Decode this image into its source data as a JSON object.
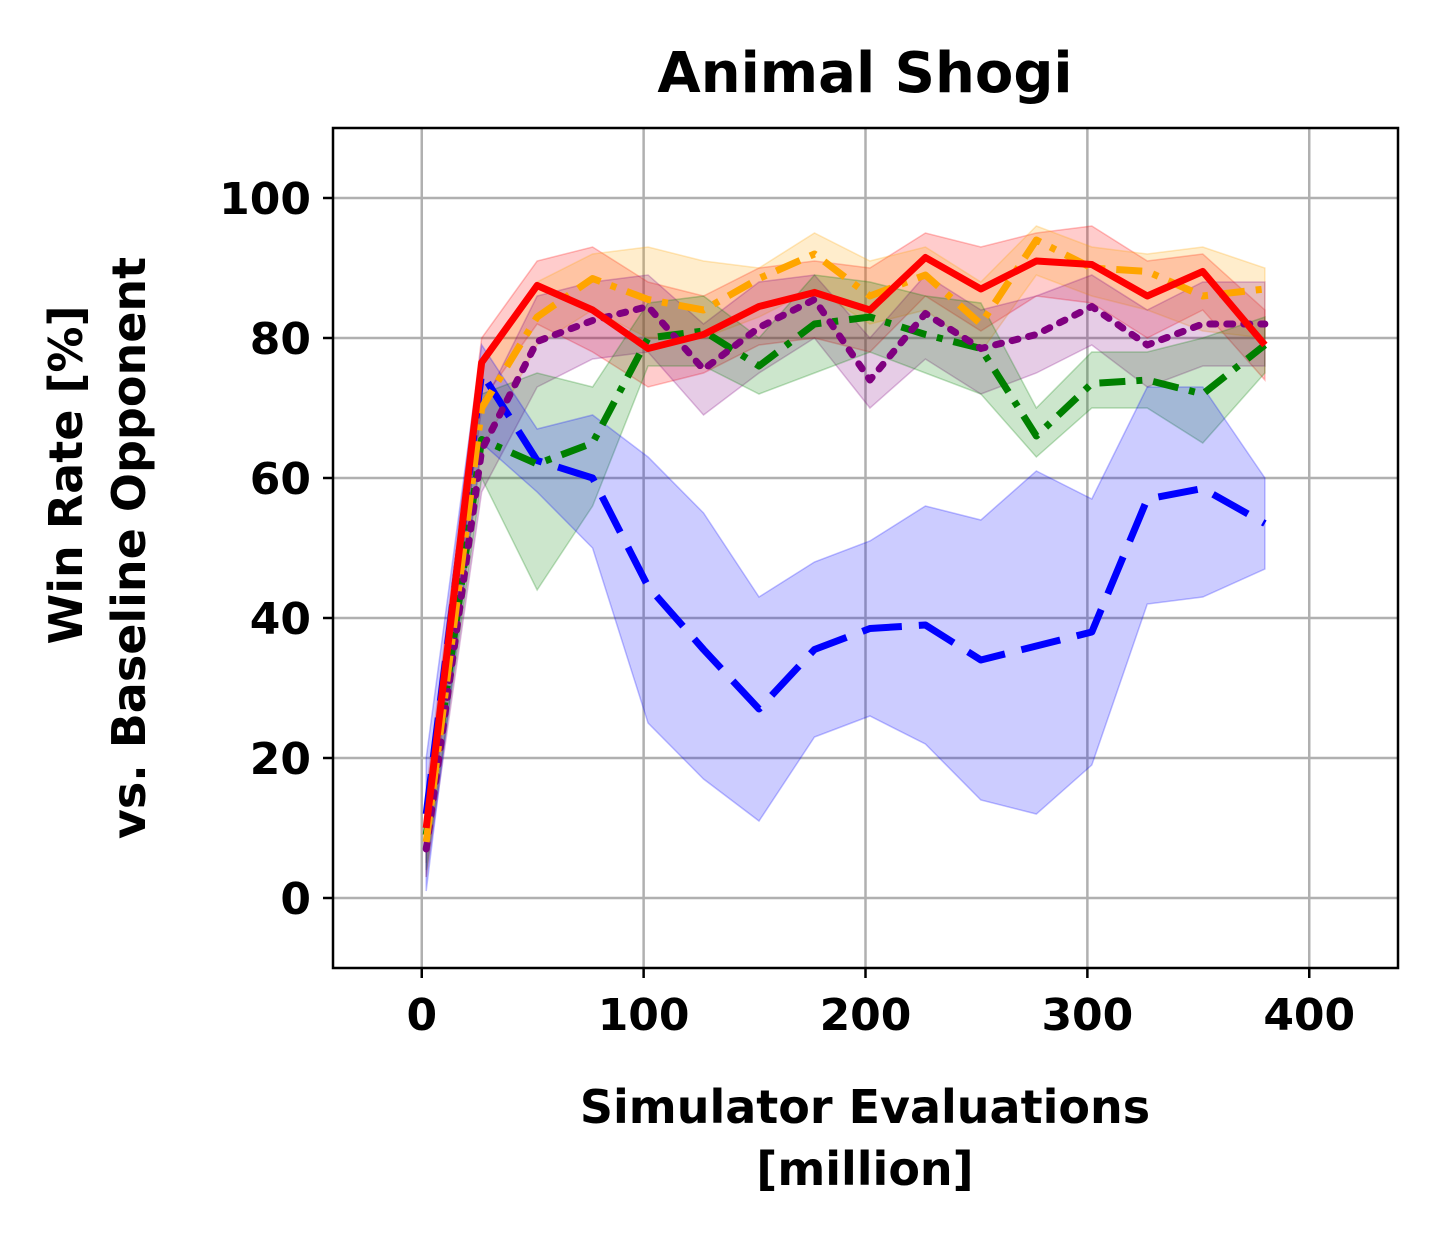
{
  "chart_data": {
    "type": "line",
    "title": "Animal Shogi",
    "xlabel_line1": "Simulator Evaluations",
    "xlabel_line2": "[million]",
    "ylabel_line1": "Win Rate [%]",
    "ylabel_line2": "vs. Baseline Opponent",
    "xlim": [
      -40,
      440
    ],
    "ylim": [
      -10,
      110
    ],
    "xticks": [
      0,
      100,
      200,
      300,
      400
    ],
    "xtick_labels": [
      "0",
      "100",
      "200",
      "300",
      "400"
    ],
    "yticks": [
      0,
      20,
      40,
      60,
      80,
      100
    ],
    "ytick_labels": [
      "0",
      "20",
      "40",
      "60",
      "80",
      "100"
    ],
    "grid": true,
    "x": [
      2,
      27,
      52,
      77,
      102,
      127,
      152,
      177,
      202,
      227,
      252,
      277,
      302,
      327,
      352,
      380
    ],
    "series": [
      {
        "name": "red",
        "color": "#ff0000",
        "style": "solid",
        "values": [
          10,
          76.5,
          87.5,
          84,
          78.5,
          80.5,
          84.5,
          86.5,
          84,
          91.5,
          87,
          91,
          90.5,
          86,
          89.5,
          79
        ],
        "lower": [
          5,
          71,
          82,
          78,
          73,
          75,
          79,
          80,
          78,
          86,
          81,
          86,
          85,
          80,
          84,
          74
        ],
        "upper": [
          15,
          80,
          91,
          93,
          88,
          86,
          90,
          91,
          90,
          95,
          93,
          95,
          96,
          91,
          92,
          84
        ]
      },
      {
        "name": "orange",
        "color": "#ffa500",
        "style": "dashdot",
        "values": [
          8,
          70,
          83,
          88.5,
          85.5,
          84,
          88.5,
          92,
          86,
          89,
          82,
          94,
          90,
          89.5,
          86,
          87
        ],
        "lower": [
          3,
          64,
          79,
          84,
          80,
          80,
          83,
          87,
          82,
          84,
          78,
          89,
          86,
          84,
          81,
          80
        ],
        "upper": [
          13,
          76,
          88,
          92,
          93,
          91,
          90,
          95,
          91,
          93,
          88,
          96,
          93,
          92,
          93,
          90
        ]
      },
      {
        "name": "purple",
        "color": "#800080",
        "style": "dotted",
        "values": [
          7,
          64,
          79.5,
          82.5,
          84.5,
          75.5,
          81.5,
          85.5,
          74,
          83.5,
          78.5,
          80.5,
          84.5,
          79,
          82,
          82
        ],
        "lower": [
          3,
          58,
          73,
          77,
          78,
          69,
          75,
          80,
          70,
          77,
          72,
          75,
          79,
          73,
          76,
          76
        ],
        "upper": [
          12,
          70,
          86,
          88,
          89,
          82,
          88,
          89,
          80,
          89,
          84,
          86,
          89,
          84,
          88,
          88
        ]
      },
      {
        "name": "green",
        "color": "#008000",
        "style": "dashdot",
        "values": [
          9,
          65.5,
          62,
          65,
          80,
          81,
          76,
          82,
          83,
          80.5,
          78.5,
          66,
          73.5,
          74,
          72,
          79
        ],
        "lower": [
          4,
          60,
          44,
          56,
          76,
          76,
          72,
          75,
          78,
          75,
          72,
          63,
          70,
          70,
          65,
          75
        ],
        "upper": [
          14,
          72,
          75,
          73,
          85,
          86,
          80,
          89,
          88,
          86,
          85,
          70,
          78,
          78,
          80,
          83
        ]
      },
      {
        "name": "blue",
        "color": "#0000ff",
        "style": "dashed",
        "values": [
          12,
          75,
          62.5,
          60,
          44.5,
          35.5,
          27,
          35.5,
          38.5,
          39,
          34,
          36,
          38,
          57,
          58.5,
          53.5
        ],
        "lower": [
          1,
          65,
          58,
          50,
          25,
          17,
          11,
          23,
          26,
          22,
          14,
          12,
          19,
          42,
          43,
          47
        ],
        "upper": [
          20,
          79,
          67,
          69,
          63,
          55,
          43,
          48,
          51,
          56,
          54,
          61,
          57,
          73,
          73,
          60
        ]
      }
    ]
  }
}
